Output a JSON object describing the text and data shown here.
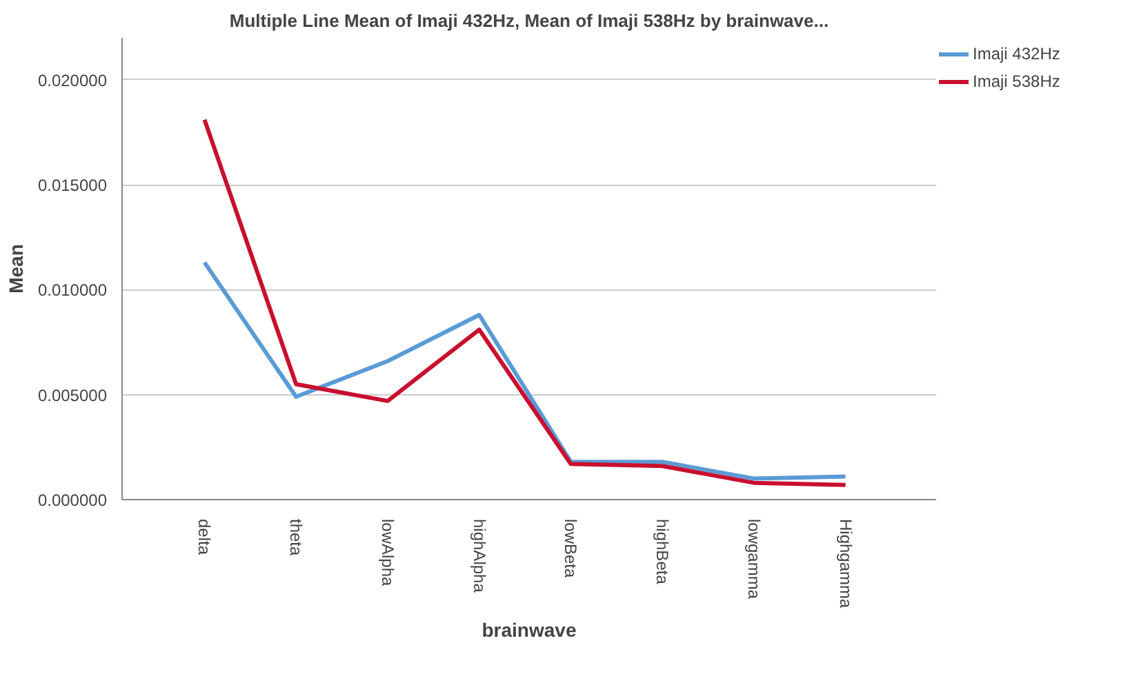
{
  "chart_data": {
    "type": "line",
    "title": "Multiple Line Mean of Imaji 432Hz, Mean of Imaji 538Hz by brainwave...",
    "xlabel": "brainwave",
    "ylabel": "Mean",
    "categories": [
      "delta",
      "theta",
      "lowAlpha",
      "highAlpha",
      "lowBeta",
      "highBeta",
      "lowgamma",
      "Highgamma"
    ],
    "series": [
      {
        "name": "Imaji 432Hz",
        "color": "#5b9bd5",
        "values": [
          0.0113,
          0.0049,
          0.0066,
          0.0088,
          0.0018,
          0.0018,
          0.001,
          0.0011
        ]
      },
      {
        "name": "Imaji 538Hz",
        "color": "#c8102e",
        "values": [
          0.0181,
          0.0055,
          0.0047,
          0.0081,
          0.0017,
          0.0016,
          0.0008,
          0.0007
        ]
      }
    ],
    "ylim": [
      0,
      0.022
    ],
    "yticks": [
      {
        "value": 0,
        "label": "0.000000"
      },
      {
        "value": 0.005,
        "label": "0.005000"
      },
      {
        "value": 0.01,
        "label": "0.010000"
      },
      {
        "value": 0.015,
        "label": "0.015000"
      },
      {
        "value": 0.02,
        "label": "0.020000"
      }
    ],
    "grid": "y",
    "legend": "top right",
    "marker": "none",
    "line_style": "solid"
  }
}
